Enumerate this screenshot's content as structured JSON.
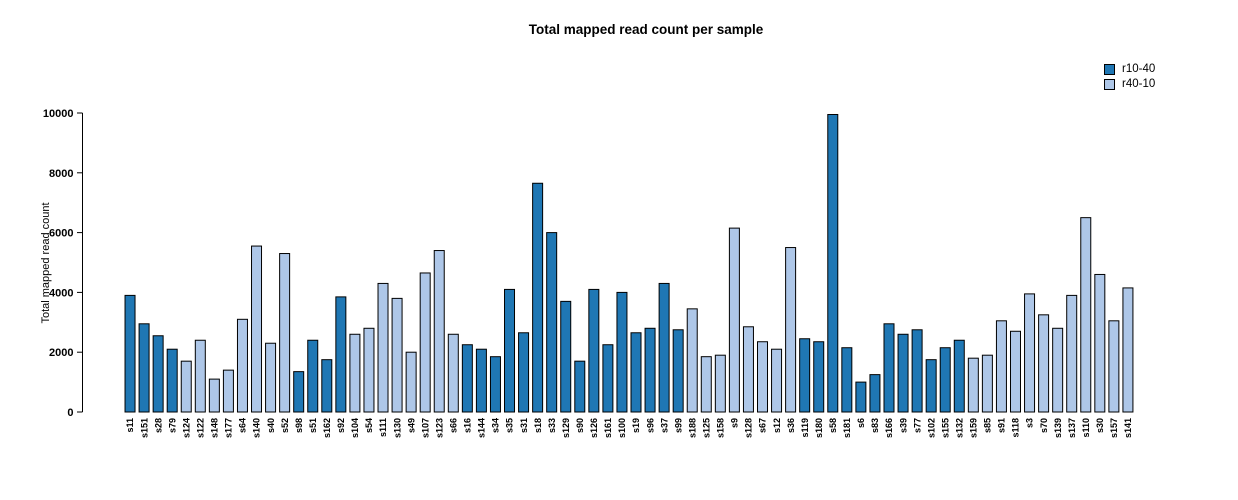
{
  "title": "Total mapped read count per sample",
  "y_axis_title": "Total mapped read count",
  "legend": {
    "items": [
      {
        "label": "r10-40",
        "color": "#1f77b4"
      },
      {
        "label": "r40-10",
        "color": "#aec7e8"
      }
    ]
  },
  "chart_data": {
    "type": "bar",
    "title": "Total mapped read count per sample",
    "xlabel": "",
    "ylabel": "Total mapped read count",
    "ylim": [
      0,
      10000
    ],
    "y_ticks": [
      0,
      2000,
      4000,
      6000,
      8000,
      10000
    ],
    "grid": false,
    "legend_position": "top-right",
    "bar_edge_color": "#000000",
    "group_colors": {
      "r10-40": "#1f77b4",
      "r40-10": "#aec7e8"
    },
    "bars": [
      {
        "label": "s11",
        "value": 3900,
        "group": "r10-40"
      },
      {
        "label": "s151",
        "value": 2950,
        "group": "r10-40"
      },
      {
        "label": "s28",
        "value": 2550,
        "group": "r10-40"
      },
      {
        "label": "s79",
        "value": 2100,
        "group": "r10-40"
      },
      {
        "label": "s124",
        "value": 1700,
        "group": "r40-10"
      },
      {
        "label": "s122",
        "value": 2400,
        "group": "r40-10"
      },
      {
        "label": "s148",
        "value": 1100,
        "group": "r40-10"
      },
      {
        "label": "s177",
        "value": 1400,
        "group": "r40-10"
      },
      {
        "label": "s64",
        "value": 3100,
        "group": "r40-10"
      },
      {
        "label": "s140",
        "value": 5550,
        "group": "r40-10"
      },
      {
        "label": "s40",
        "value": 2300,
        "group": "r40-10"
      },
      {
        "label": "s52",
        "value": 5300,
        "group": "r40-10"
      },
      {
        "label": "s98",
        "value": 1350,
        "group": "r10-40"
      },
      {
        "label": "s51",
        "value": 2400,
        "group": "r10-40"
      },
      {
        "label": "s162",
        "value": 1750,
        "group": "r10-40"
      },
      {
        "label": "s92",
        "value": 3850,
        "group": "r10-40"
      },
      {
        "label": "s104",
        "value": 2600,
        "group": "r40-10"
      },
      {
        "label": "s54",
        "value": 2800,
        "group": "r40-10"
      },
      {
        "label": "s111",
        "value": 4300,
        "group": "r40-10"
      },
      {
        "label": "s130",
        "value": 3800,
        "group": "r40-10"
      },
      {
        "label": "s49",
        "value": 2000,
        "group": "r40-10"
      },
      {
        "label": "s107",
        "value": 4650,
        "group": "r40-10"
      },
      {
        "label": "s123",
        "value": 5400,
        "group": "r40-10"
      },
      {
        "label": "s66",
        "value": 2600,
        "group": "r40-10"
      },
      {
        "label": "s16",
        "value": 2250,
        "group": "r10-40"
      },
      {
        "label": "s144",
        "value": 2100,
        "group": "r10-40"
      },
      {
        "label": "s34",
        "value": 1850,
        "group": "r10-40"
      },
      {
        "label": "s35",
        "value": 4100,
        "group": "r10-40"
      },
      {
        "label": "s31",
        "value": 2650,
        "group": "r10-40"
      },
      {
        "label": "s18",
        "value": 7650,
        "group": "r10-40"
      },
      {
        "label": "s33",
        "value": 6000,
        "group": "r10-40"
      },
      {
        "label": "s129",
        "value": 3700,
        "group": "r10-40"
      },
      {
        "label": "s90",
        "value": 1700,
        "group": "r10-40"
      },
      {
        "label": "s126",
        "value": 4100,
        "group": "r10-40"
      },
      {
        "label": "s161",
        "value": 2250,
        "group": "r10-40"
      },
      {
        "label": "s100",
        "value": 4000,
        "group": "r10-40"
      },
      {
        "label": "s19",
        "value": 2650,
        "group": "r10-40"
      },
      {
        "label": "s96",
        "value": 2800,
        "group": "r10-40"
      },
      {
        "label": "s37",
        "value": 4300,
        "group": "r10-40"
      },
      {
        "label": "s99",
        "value": 2750,
        "group": "r10-40"
      },
      {
        "label": "s188",
        "value": 3450,
        "group": "r40-10"
      },
      {
        "label": "s125",
        "value": 1850,
        "group": "r40-10"
      },
      {
        "label": "s158",
        "value": 1900,
        "group": "r40-10"
      },
      {
        "label": "s9",
        "value": 6150,
        "group": "r40-10"
      },
      {
        "label": "s128",
        "value": 2850,
        "group": "r40-10"
      },
      {
        "label": "s67",
        "value": 2350,
        "group": "r40-10"
      },
      {
        "label": "s12",
        "value": 2100,
        "group": "r40-10"
      },
      {
        "label": "s36",
        "value": 5500,
        "group": "r40-10"
      },
      {
        "label": "s119",
        "value": 2450,
        "group": "r10-40"
      },
      {
        "label": "s180",
        "value": 2350,
        "group": "r10-40"
      },
      {
        "label": "s58",
        "value": 9950,
        "group": "r10-40"
      },
      {
        "label": "s181",
        "value": 2150,
        "group": "r10-40"
      },
      {
        "label": "s6",
        "value": 1000,
        "group": "r10-40"
      },
      {
        "label": "s83",
        "value": 1250,
        "group": "r10-40"
      },
      {
        "label": "s166",
        "value": 2950,
        "group": "r10-40"
      },
      {
        "label": "s39",
        "value": 2600,
        "group": "r10-40"
      },
      {
        "label": "s77",
        "value": 2750,
        "group": "r10-40"
      },
      {
        "label": "s102",
        "value": 1750,
        "group": "r10-40"
      },
      {
        "label": "s155",
        "value": 2150,
        "group": "r10-40"
      },
      {
        "label": "s132",
        "value": 2400,
        "group": "r10-40"
      },
      {
        "label": "s159",
        "value": 1800,
        "group": "r40-10"
      },
      {
        "label": "s85",
        "value": 1900,
        "group": "r40-10"
      },
      {
        "label": "s91",
        "value": 3050,
        "group": "r40-10"
      },
      {
        "label": "s118",
        "value": 2700,
        "group": "r40-10"
      },
      {
        "label": "s3",
        "value": 3950,
        "group": "r40-10"
      },
      {
        "label": "s70",
        "value": 3250,
        "group": "r40-10"
      },
      {
        "label": "s139",
        "value": 2800,
        "group": "r40-10"
      },
      {
        "label": "s137",
        "value": 3900,
        "group": "r40-10"
      },
      {
        "label": "s110",
        "value": 6500,
        "group": "r40-10"
      },
      {
        "label": "s30",
        "value": 4600,
        "group": "r40-10"
      },
      {
        "label": "s157",
        "value": 3050,
        "group": "r40-10"
      },
      {
        "label": "s141",
        "value": 4150,
        "group": "r40-10"
      }
    ]
  }
}
